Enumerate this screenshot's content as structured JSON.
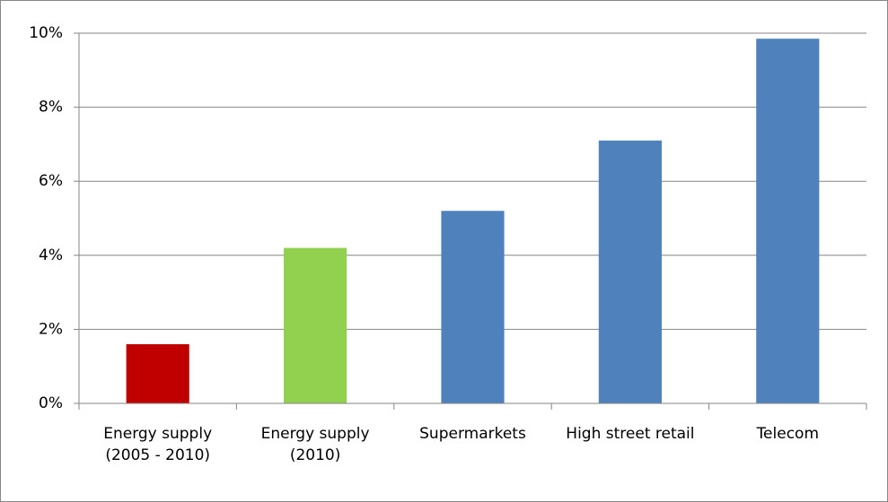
{
  "chart_data": {
    "type": "bar",
    "categories": [
      "Energy supply (2005 - 2010)",
      "Energy supply (2010)",
      "Supermarkets",
      "High street retail",
      "Telecom"
    ],
    "values": [
      1.6,
      4.2,
      5.2,
      7.1,
      9.85
    ],
    "colors": [
      "#c00000",
      "#92d050",
      "#4f81bd",
      "#4f81bd",
      "#4f81bd"
    ],
    "ylim": [
      0,
      10
    ],
    "yticks": [
      {
        "value": 0,
        "label": "0%"
      },
      {
        "value": 2,
        "label": "2%"
      },
      {
        "value": 4,
        "label": "4%"
      },
      {
        "value": 6,
        "label": "6%"
      },
      {
        "value": 8,
        "label": "8%"
      },
      {
        "value": 10,
        "label": "10%"
      }
    ],
    "grid": true
  }
}
